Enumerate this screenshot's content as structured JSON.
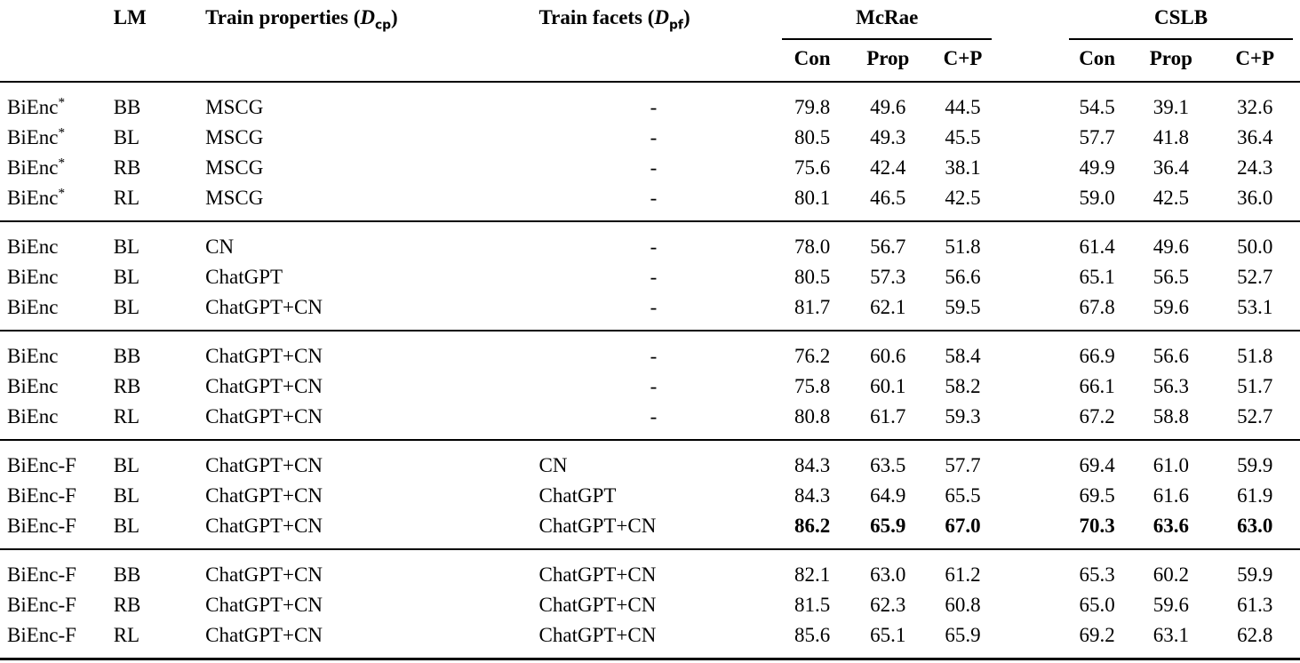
{
  "page": {
    "background": "#ffffff",
    "text_color": "#000000",
    "rule_color": "#000000"
  },
  "table": {
    "header": {
      "model": "",
      "lm": "LM",
      "train_properties": {
        "prefix": "Train properties (",
        "symbol": "D",
        "sub": "cp",
        "suffix": ")"
      },
      "train_facets": {
        "prefix": "Train facets (",
        "symbol": "D",
        "sub": "pf",
        "suffix": ")"
      },
      "dataset_groups": [
        "McRae",
        "CSLB"
      ],
      "subcolumns": [
        "Con",
        "Prop",
        "C+P"
      ]
    },
    "groups": [
      {
        "rows": [
          {
            "model": "BiEnc*",
            "lm": "BB",
            "props": "MSCG",
            "facets": "-",
            "values": [
              "79.8",
              "49.6",
              "44.5",
              "54.5",
              "39.1",
              "32.6"
            ],
            "bold": false
          },
          {
            "model": "BiEnc*",
            "lm": "BL",
            "props": "MSCG",
            "facets": "-",
            "values": [
              "80.5",
              "49.3",
              "45.5",
              "57.7",
              "41.8",
              "36.4"
            ],
            "bold": false
          },
          {
            "model": "BiEnc*",
            "lm": "RB",
            "props": "MSCG",
            "facets": "-",
            "values": [
              "75.6",
              "42.4",
              "38.1",
              "49.9",
              "36.4",
              "24.3"
            ],
            "bold": false
          },
          {
            "model": "BiEnc*",
            "lm": "RL",
            "props": "MSCG",
            "facets": "-",
            "values": [
              "80.1",
              "46.5",
              "42.5",
              "59.0",
              "42.5",
              "36.0"
            ],
            "bold": false
          }
        ]
      },
      {
        "rows": [
          {
            "model": "BiEnc",
            "lm": "BL",
            "props": "CN",
            "facets": "-",
            "values": [
              "78.0",
              "56.7",
              "51.8",
              "61.4",
              "49.6",
              "50.0"
            ],
            "bold": false
          },
          {
            "model": "BiEnc",
            "lm": "BL",
            "props": "ChatGPT",
            "facets": "-",
            "values": [
              "80.5",
              "57.3",
              "56.6",
              "65.1",
              "56.5",
              "52.7"
            ],
            "bold": false
          },
          {
            "model": "BiEnc",
            "lm": "BL",
            "props": "ChatGPT+CN",
            "facets": "-",
            "values": [
              "81.7",
              "62.1",
              "59.5",
              "67.8",
              "59.6",
              "53.1"
            ],
            "bold": false
          }
        ]
      },
      {
        "rows": [
          {
            "model": "BiEnc",
            "lm": "BB",
            "props": "ChatGPT+CN",
            "facets": "-",
            "values": [
              "76.2",
              "60.6",
              "58.4",
              "66.9",
              "56.6",
              "51.8"
            ],
            "bold": false
          },
          {
            "model": "BiEnc",
            "lm": "RB",
            "props": "ChatGPT+CN",
            "facets": "-",
            "values": [
              "75.8",
              "60.1",
              "58.2",
              "66.1",
              "56.3",
              "51.7"
            ],
            "bold": false
          },
          {
            "model": "BiEnc",
            "lm": "RL",
            "props": "ChatGPT+CN",
            "facets": "-",
            "values": [
              "80.8",
              "61.7",
              "59.3",
              "67.2",
              "58.8",
              "52.7"
            ],
            "bold": false
          }
        ]
      },
      {
        "rows": [
          {
            "model": "BiEnc-F",
            "lm": "BL",
            "props": "ChatGPT+CN",
            "facets": "CN",
            "values": [
              "84.3",
              "63.5",
              "57.7",
              "69.4",
              "61.0",
              "59.9"
            ],
            "bold": false
          },
          {
            "model": "BiEnc-F",
            "lm": "BL",
            "props": "ChatGPT+CN",
            "facets": "ChatGPT",
            "values": [
              "84.3",
              "64.9",
              "65.5",
              "69.5",
              "61.6",
              "61.9"
            ],
            "bold": false
          },
          {
            "model": "BiEnc-F",
            "lm": "BL",
            "props": "ChatGPT+CN",
            "facets": "ChatGPT+CN",
            "values": [
              "86.2",
              "65.9",
              "67.0",
              "70.3",
              "63.6",
              "63.0"
            ],
            "bold": true
          }
        ]
      },
      {
        "rows": [
          {
            "model": "BiEnc-F",
            "lm": "BB",
            "props": "ChatGPT+CN",
            "facets": "ChatGPT+CN",
            "values": [
              "82.1",
              "63.0",
              "61.2",
              "65.3",
              "60.2",
              "59.9"
            ],
            "bold": false
          },
          {
            "model": "BiEnc-F",
            "lm": "RB",
            "props": "ChatGPT+CN",
            "facets": "ChatGPT+CN",
            "values": [
              "81.5",
              "62.3",
              "60.8",
              "65.0",
              "59.6",
              "61.3"
            ],
            "bold": false
          },
          {
            "model": "BiEnc-F",
            "lm": "RL",
            "props": "ChatGPT+CN",
            "facets": "ChatGPT+CN",
            "values": [
              "85.6",
              "65.1",
              "65.9",
              "69.2",
              "63.1",
              "62.8"
            ],
            "bold": false
          }
        ]
      }
    ]
  }
}
